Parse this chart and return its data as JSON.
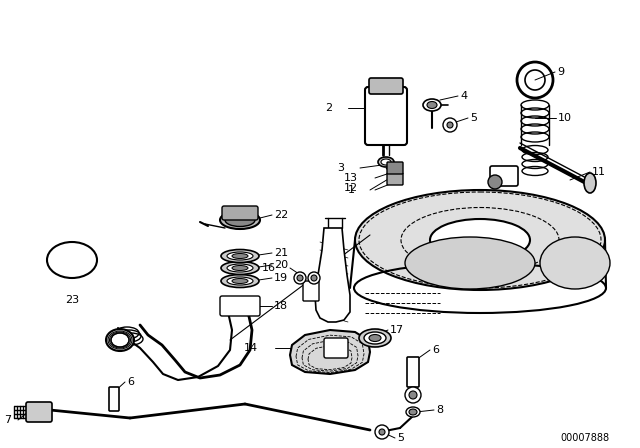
{
  "bg_color": "#ffffff",
  "line_color": "#000000",
  "fig_width": 6.4,
  "fig_height": 4.48,
  "dpi": 100,
  "diagram_code": "00007888"
}
